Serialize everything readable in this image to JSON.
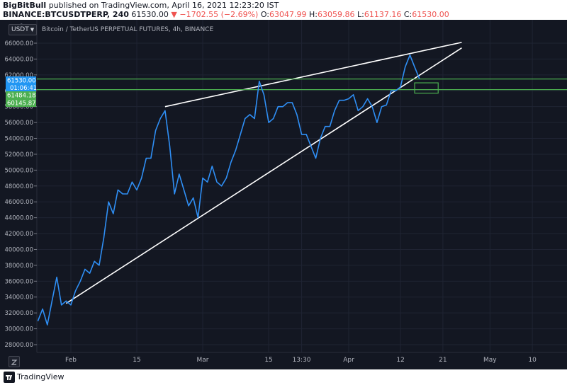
{
  "header": {
    "author": "BigBitBull",
    "published_text": "published on TradingView.com, April 16, 2021 12:23:20 IST",
    "symbol": "BINANCE:BTCUSDTPERP, 240",
    "last": "61530.00",
    "change_arrow": "▼",
    "change": "−1702.55 (−2.69%)",
    "open_label": "O:",
    "open": "63047.99",
    "high_label": "H:",
    "high": "63059.86",
    "low_label": "L:",
    "low": "61137.16",
    "close_label": "C:",
    "close": "61530.00"
  },
  "chart_title": "Bitcoin / TetherUS PERPETUAL FUTURES, 4h, BINANCE",
  "currency_button": "USDT",
  "scale_number": "6",
  "price_labels": {
    "current_price": "61530.00",
    "countdown": "01:06:41",
    "line_upper": "61484.18",
    "line_lower": "60145.87"
  },
  "footer": {
    "brand": "TradingView"
  },
  "colors": {
    "background": "#131722",
    "price_line": "#2f8ff5",
    "trendline": "#ffffff",
    "horizontal_line": "#4caf50",
    "current_price_tag": "#2196f3",
    "line_tag": "#4caf50",
    "negative": "#ef5350"
  },
  "chart_data": {
    "type": "line",
    "title": "Bitcoin / TetherUS PERPETUAL FUTURES, 4h, BINANCE",
    "series": [
      {
        "name": "BTCUSDTPERP",
        "points": [
          [
            "2021-01-25",
            31000
          ],
          [
            "2021-01-26",
            32500
          ],
          [
            "2021-01-27",
            30500
          ],
          [
            "2021-01-28",
            33500
          ],
          [
            "2021-01-29",
            36500
          ],
          [
            "2021-01-30",
            33000
          ],
          [
            "2021-01-31",
            33500
          ],
          [
            "2021-02-01",
            33000
          ],
          [
            "2021-02-02",
            34800
          ],
          [
            "2021-02-03",
            36000
          ],
          [
            "2021-02-04",
            37500
          ],
          [
            "2021-02-05",
            37000
          ],
          [
            "2021-02-06",
            38500
          ],
          [
            "2021-02-07",
            38000
          ],
          [
            "2021-02-08",
            41500
          ],
          [
            "2021-02-09",
            46000
          ],
          [
            "2021-02-10",
            44500
          ],
          [
            "2021-02-11",
            47500
          ],
          [
            "2021-02-12",
            47000
          ],
          [
            "2021-02-13",
            47000
          ],
          [
            "2021-02-14",
            48500
          ],
          [
            "2021-02-15",
            47500
          ],
          [
            "2021-02-16",
            49000
          ],
          [
            "2021-02-17",
            51500
          ],
          [
            "2021-02-18",
            51500
          ],
          [
            "2021-02-19",
            55000
          ],
          [
            "2021-02-20",
            56500
          ],
          [
            "2021-02-21",
            57500
          ],
          [
            "2021-02-22",
            53000
          ],
          [
            "2021-02-23",
            47000
          ],
          [
            "2021-02-24",
            49500
          ],
          [
            "2021-02-25",
            47500
          ],
          [
            "2021-02-26",
            45500
          ],
          [
            "2021-02-27",
            46500
          ],
          [
            "2021-02-28",
            44000
          ],
          [
            "2021-03-01",
            49000
          ],
          [
            "2021-03-02",
            48500
          ],
          [
            "2021-03-03",
            50500
          ],
          [
            "2021-03-04",
            48500
          ],
          [
            "2021-03-05",
            48000
          ],
          [
            "2021-03-06",
            49000
          ],
          [
            "2021-03-07",
            51000
          ],
          [
            "2021-03-08",
            52500
          ],
          [
            "2021-03-09",
            54500
          ],
          [
            "2021-03-10",
            56500
          ],
          [
            "2021-03-11",
            57000
          ],
          [
            "2021-03-12",
            56500
          ],
          [
            "2021-03-13",
            61200
          ],
          [
            "2021-03-14",
            59500
          ],
          [
            "2021-03-15",
            56000
          ],
          [
            "2021-03-16",
            56500
          ],
          [
            "2021-03-17",
            58000
          ],
          [
            "2021-03-18",
            58000
          ],
          [
            "2021-03-19",
            58500
          ],
          [
            "2021-03-20",
            58500
          ],
          [
            "2021-03-21",
            57000
          ],
          [
            "2021-03-22",
            54500
          ],
          [
            "2021-03-23",
            54500
          ],
          [
            "2021-03-24",
            53000
          ],
          [
            "2021-03-25",
            51500
          ],
          [
            "2021-03-26",
            54000
          ],
          [
            "2021-03-27",
            55500
          ],
          [
            "2021-03-28",
            55500
          ],
          [
            "2021-03-29",
            57500
          ],
          [
            "2021-03-30",
            58800
          ],
          [
            "2021-03-31",
            58800
          ],
          [
            "2021-04-01",
            59000
          ],
          [
            "2021-04-02",
            59500
          ],
          [
            "2021-04-03",
            57500
          ],
          [
            "2021-04-04",
            58000
          ],
          [
            "2021-04-05",
            59000
          ],
          [
            "2021-04-06",
            58000
          ],
          [
            "2021-04-07",
            56000
          ],
          [
            "2021-04-08",
            58000
          ],
          [
            "2021-04-09",
            58200
          ],
          [
            "2021-04-10",
            60000
          ],
          [
            "2021-04-11",
            60000
          ],
          [
            "2021-04-12",
            60500
          ],
          [
            "2021-04-13",
            63000
          ],
          [
            "2021-04-14",
            64500
          ],
          [
            "2021-04-15",
            63000
          ],
          [
            "2021-04-16",
            61530
          ]
        ]
      }
    ],
    "trendlines": [
      {
        "name": "upper",
        "from": [
          "2021-02-21",
          58000
        ],
        "to": [
          "2021-04-25",
          66100
        ]
      },
      {
        "name": "lower",
        "from": [
          "2021-01-31",
          33200
        ],
        "to": [
          "2021-04-25",
          65400
        ]
      }
    ],
    "horizontal_lines": [
      61484.18,
      60145.87
    ],
    "box": {
      "from": [
        "2021-04-15",
        59700
      ],
      "to": [
        "2021-04-20",
        61000
      ]
    },
    "y_axis": {
      "ticks": [
        28000,
        30000,
        32000,
        34000,
        36000,
        38000,
        40000,
        42000,
        44000,
        46000,
        48000,
        50000,
        52000,
        54000,
        56000,
        58000,
        60000,
        62000,
        64000,
        66000
      ],
      "tick_labels": [
        "28000.00",
        "30000.00",
        "32000.00",
        "34000.00",
        "36000.00",
        "38000.00",
        "40000.00",
        "42000.00",
        "44000.00",
        "46000.00",
        "48000.00",
        "50000.00",
        "52000.00",
        "54000.00",
        "56000.00",
        "58000.00",
        "60000.00",
        "62000.00",
        "64000.00",
        "66000.00"
      ]
    },
    "x_axis": {
      "ticks": [
        {
          "date": "2021-02-01",
          "label": "Feb"
        },
        {
          "date": "2021-02-15",
          "label": "15"
        },
        {
          "date": "2021-03-01",
          "label": "Mar"
        },
        {
          "date": "2021-03-15",
          "label": "15"
        },
        {
          "date": "2021-03-22",
          "label": "13:30"
        },
        {
          "date": "2021-04-01",
          "label": "Apr"
        },
        {
          "date": "2021-04-12",
          "label": "12"
        },
        {
          "date": "2021-04-21",
          "label": "21"
        },
        {
          "date": "2021-05-01",
          "label": "May"
        },
        {
          "date": "2021-05-10",
          "label": "10"
        }
      ]
    },
    "grid": true
  }
}
